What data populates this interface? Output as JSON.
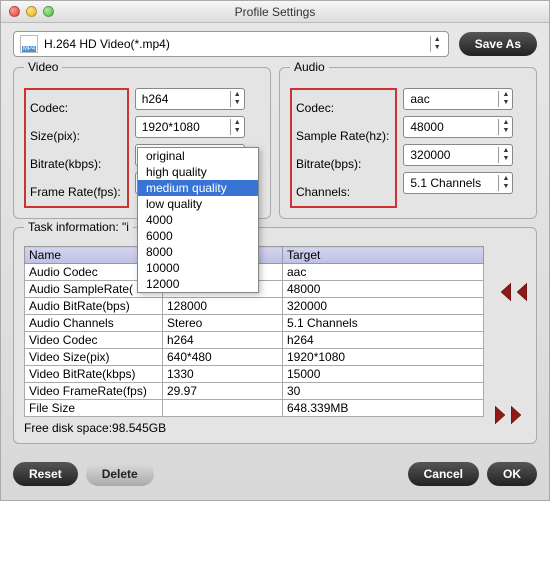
{
  "window": {
    "title": "Profile Settings"
  },
  "toolbar": {
    "profile_label": "H.264 HD Video(*.mp4)",
    "save_as": "Save As"
  },
  "video": {
    "section": "Video",
    "labels": {
      "codec": "Codec:",
      "size": "Size(pix):",
      "bitrate": "Bitrate(kbps):",
      "framerate": "Frame Rate(fps):"
    },
    "values": {
      "codec": "h264",
      "size": "1920*1080",
      "bitrate": "medium quality",
      "framerate": ""
    }
  },
  "audio": {
    "section": "Audio",
    "labels": {
      "codec": "Codec:",
      "samplerate": "Sample Rate(hz):",
      "bitrate": "Bitrate(bps):",
      "channels": "Channels:"
    },
    "values": {
      "codec": "aac",
      "samplerate": "48000",
      "bitrate": "320000",
      "channels": "5.1 Channels"
    }
  },
  "bitrate_dropdown": {
    "options": [
      "original",
      "high quality",
      "medium quality",
      "low quality",
      "4000",
      "6000",
      "8000",
      "10000",
      "12000"
    ],
    "selected": "medium quality"
  },
  "task": {
    "section_prefix": "Task information: \"i",
    "headers": {
      "name": "Name",
      "target": "Target"
    },
    "rows": [
      {
        "name": "Audio Codec",
        "source": "",
        "target": "aac"
      },
      {
        "name": "Audio SampleRate(",
        "source": "",
        "target": "48000"
      },
      {
        "name": "Audio BitRate(bps)",
        "source": "128000",
        "target": "320000"
      },
      {
        "name": "Audio Channels",
        "source": "Stereo",
        "target": "5.1 Channels"
      },
      {
        "name": "Video Codec",
        "source": "h264",
        "target": "h264"
      },
      {
        "name": "Video Size(pix)",
        "source": "640*480",
        "target": "1920*1080"
      },
      {
        "name": "Video BitRate(kbps)",
        "source": "1330",
        "target": "15000"
      },
      {
        "name": "Video FrameRate(fps)",
        "source": "29.97",
        "target": "30"
      },
      {
        "name": "File Size",
        "source": "",
        "target": "648.339MB"
      }
    ],
    "freespace": "Free disk space:98.545GB"
  },
  "footer": {
    "reset": "Reset",
    "delete": "Delete",
    "cancel": "Cancel",
    "ok": "OK"
  },
  "colors": {
    "highlight_border": "#c33",
    "dropdown_sel_bg": "#3874d6",
    "arrow_fill": "#8b1a1a"
  }
}
